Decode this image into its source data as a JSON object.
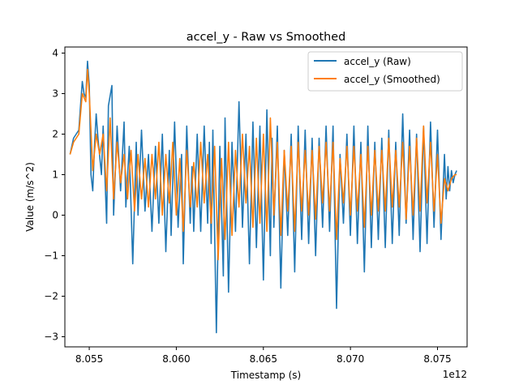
{
  "chart_data": {
    "type": "line",
    "title": "accel_y - Raw vs Smoothed",
    "xlabel": "Timestamp (s)",
    "ylabel": "Value (m/s^2)",
    "x_offset_label": "1e12",
    "xlim": [
      8.0536,
      8.0767
    ],
    "ylim": [
      -3.25,
      4.15
    ],
    "x_ticks": [
      8.055,
      8.06,
      8.065,
      8.07,
      8.075
    ],
    "x_tick_labels": [
      "8.055",
      "8.060",
      "8.065",
      "8.070",
      "8.075"
    ],
    "y_ticks": [
      -3,
      -2,
      -1,
      0,
      1,
      2,
      3,
      4
    ],
    "y_tick_labels": [
      "−3",
      "−2",
      "−1",
      "0",
      "1",
      "2",
      "3",
      "4"
    ],
    "grid": false,
    "legend_position": "top-right",
    "series": [
      {
        "name": "accel_y (Raw)",
        "color": "#1f77b4",
        "x": [
          8.0539,
          8.0541,
          8.0544,
          8.0545,
          8.0546,
          8.0547,
          8.0548,
          8.0549,
          8.055,
          8.0551,
          8.0552,
          8.0553,
          8.0554,
          8.0555,
          8.0557,
          8.0558,
          8.056,
          8.0561,
          8.0563,
          8.0564,
          8.0566,
          8.0568,
          8.057,
          8.0571,
          8.0573,
          8.0575,
          8.0577,
          8.0578,
          8.058,
          8.0582,
          8.0584,
          8.0586,
          8.0588,
          8.059,
          8.0592,
          8.0594,
          8.0596,
          8.0597,
          8.0599,
          8.0601,
          8.0603,
          8.0604,
          8.0606,
          8.0608,
          8.0609,
          8.061,
          8.0612,
          8.0614,
          8.0616,
          8.0618,
          8.0619,
          8.062,
          8.0621,
          8.0623,
          8.0625,
          8.0627,
          8.0628,
          8.063,
          8.0632,
          8.0634,
          8.0636,
          8.0638,
          8.064,
          8.0642,
          8.0644,
          8.0646,
          8.0648,
          8.065,
          8.0652,
          8.0654,
          8.0655,
          8.0656,
          8.0658,
          8.066,
          8.0662,
          8.0664,
          8.0666,
          8.0668,
          8.067,
          8.0672,
          8.0674,
          8.0676,
          8.0678,
          8.068,
          8.0682,
          8.0684,
          8.0686,
          8.0688,
          8.069,
          8.0692,
          8.0694,
          8.0696,
          8.0698,
          8.07,
          8.0702,
          8.0704,
          8.0706,
          8.0708,
          8.071,
          8.0712,
          8.0714,
          8.0716,
          8.0718,
          8.072,
          8.0722,
          8.0724,
          8.0726,
          8.0728,
          8.073,
          8.0732,
          8.0734,
          8.0736,
          8.0738,
          8.074,
          8.0742,
          8.0744,
          8.0746,
          8.0748,
          8.075,
          8.0752,
          8.0754,
          8.0755,
          8.0756,
          8.0757,
          8.0758,
          8.0759,
          8.076,
          8.0761
        ],
        "values": [
          1.5,
          1.9,
          2.1,
          2.7,
          3.3,
          3.0,
          2.9,
          3.8,
          3.2,
          1.0,
          0.6,
          1.7,
          2.5,
          1.9,
          1.0,
          2.2,
          -0.2,
          2.7,
          3.2,
          0.0,
          2.2,
          0.6,
          2.3,
          0.2,
          1.7,
          -1.2,
          1.8,
          0.0,
          2.1,
          0.1,
          1.5,
          -0.4,
          1.7,
          -0.2,
          2.0,
          -0.9,
          1.6,
          -0.5,
          2.3,
          -0.3,
          1.5,
          -1.2,
          2.2,
          -0.2,
          1.2,
          -0.4,
          2.0,
          -0.4,
          2.2,
          -0.2,
          1.8,
          -0.7,
          2.1,
          -2.9,
          1.7,
          -1.5,
          2.4,
          -1.9,
          1.8,
          -0.4,
          2.8,
          -0.3,
          2.0,
          -1.2,
          2.3,
          -0.8,
          2.2,
          -1.6,
          2.6,
          -1.0,
          1.9,
          -0.3,
          2.2,
          -1.8,
          1.6,
          -0.5,
          2.0,
          -1.4,
          2.2,
          -0.6,
          2.1,
          -0.7,
          1.9,
          -1.0,
          1.9,
          -0.3,
          2.2,
          -0.4,
          2.2,
          -2.3,
          1.5,
          -0.2,
          2.0,
          -0.5,
          2.2,
          -0.7,
          1.8,
          -1.4,
          2.2,
          -0.8,
          1.8,
          -0.6,
          1.9,
          -0.8,
          2.1,
          -0.7,
          1.8,
          -0.5,
          2.5,
          -0.2,
          2.1,
          -0.6,
          2.0,
          -0.9,
          2.2,
          -0.7,
          2.3,
          -0.3,
          2.1,
          -0.6,
          1.5,
          0.4,
          1.2,
          0.6,
          1.1,
          0.8,
          1.0,
          1.1
        ]
      },
      {
        "name": "accel_y (Smoothed)",
        "color": "#ff7f0e",
        "x": [
          8.0539,
          8.0541,
          8.0544,
          8.0546,
          8.0548,
          8.0549,
          8.055,
          8.0552,
          8.0554,
          8.0556,
          8.0558,
          8.056,
          8.0562,
          8.0564,
          8.0566,
          8.0568,
          8.057,
          8.0572,
          8.0574,
          8.0576,
          8.0578,
          8.058,
          8.0582,
          8.0584,
          8.0586,
          8.0588,
          8.059,
          8.0592,
          8.0594,
          8.0596,
          8.0598,
          8.06,
          8.0602,
          8.0604,
          8.0606,
          8.0608,
          8.061,
          8.0612,
          8.0614,
          8.0616,
          8.0618,
          8.062,
          8.0622,
          8.0624,
          8.0626,
          8.0628,
          8.063,
          8.0632,
          8.0634,
          8.0636,
          8.0638,
          8.064,
          8.0642,
          8.0644,
          8.0646,
          8.0648,
          8.065,
          8.0652,
          8.0654,
          8.0656,
          8.0658,
          8.066,
          8.0662,
          8.0664,
          8.0666,
          8.0668,
          8.067,
          8.0672,
          8.0674,
          8.0676,
          8.0678,
          8.068,
          8.0682,
          8.0684,
          8.0686,
          8.0688,
          8.069,
          8.0692,
          8.0694,
          8.0696,
          8.0698,
          8.07,
          8.0702,
          8.0704,
          8.0706,
          8.0708,
          8.071,
          8.0712,
          8.0714,
          8.0716,
          8.0718,
          8.072,
          8.0722,
          8.0724,
          8.0726,
          8.0728,
          8.073,
          8.0732,
          8.0734,
          8.0736,
          8.0738,
          8.074,
          8.0742,
          8.0744,
          8.0746,
          8.0748,
          8.075,
          8.0752,
          8.0754,
          8.0756,
          8.0758,
          8.076,
          8.0761
        ],
        "values": [
          1.5,
          1.8,
          2.0,
          3.0,
          2.8,
          3.6,
          3.0,
          1.1,
          2.0,
          1.5,
          2.0,
          0.6,
          2.4,
          0.4,
          1.8,
          0.8,
          1.5,
          0.4,
          1.6,
          0.1,
          1.5,
          0.4,
          1.4,
          0.2,
          1.5,
          0.4,
          1.8,
          0.0,
          1.5,
          0.3,
          1.8,
          0.0,
          1.4,
          -0.4,
          1.6,
          0.2,
          1.3,
          0.2,
          1.8,
          0.3,
          1.5,
          -0.2,
          1.7,
          -1.1,
          1.4,
          -0.6,
          1.8,
          -0.5,
          1.6,
          0.2,
          2.0,
          0.3,
          1.7,
          -0.3,
          1.9,
          -0.2,
          2.0,
          -0.4,
          2.4,
          0.0,
          1.8,
          -0.5,
          1.6,
          0.1,
          1.7,
          -0.4,
          1.8,
          0.1,
          1.6,
          0.0,
          1.6,
          -0.1,
          1.7,
          0.3,
          1.8,
          0.1,
          1.8,
          -0.6,
          1.4,
          0.3,
          1.7,
          0.0,
          1.7,
          0.1,
          1.5,
          -0.3,
          1.7,
          0.0,
          1.6,
          0.1,
          1.6,
          0.1,
          1.9,
          0.2,
          1.6,
          0.2,
          1.8,
          -0.1,
          1.7,
          0.0,
          1.9,
          0.1,
          2.2,
          0.3,
          1.8,
          0.1,
          1.5,
          -0.2,
          0.9,
          0.6,
          0.9,
          1.0,
          1.0
        ]
      }
    ]
  }
}
